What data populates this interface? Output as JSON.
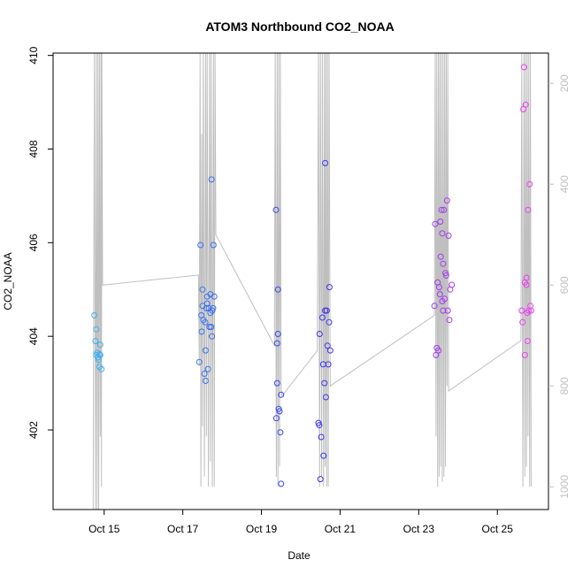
{
  "chart_data": {
    "type": "scatter",
    "title": "ATOM3 Northbound CO2_NOAA",
    "xlabel": "Date",
    "ylabel": "CO2_NOAA",
    "x_ticks": [
      "Oct 15",
      "Oct 17",
      "Oct 19",
      "Oct 21",
      "Oct 23",
      "Oct 25"
    ],
    "x_tick_values": [
      15,
      17,
      19,
      21,
      23,
      25
    ],
    "xlim": [
      13.7,
      26.3
    ],
    "ylim": [
      400.3,
      410.05
    ],
    "y_ticks": [
      402,
      404,
      406,
      408,
      410
    ],
    "right_axis": {
      "ticks": [
        200,
        400,
        600,
        800,
        1000
      ],
      "ylim": [
        1045,
        140
      ],
      "color": "#bfbfbf",
      "note": "secondary reversed axis for the gray trace"
    },
    "grid": false,
    "legend": "none",
    "point_color_start": "#3fb6ef",
    "point_color_end": "#f03ef0",
    "points": [
      [
        14.75,
        404.45
      ],
      [
        14.78,
        403.9
      ],
      [
        14.8,
        404.15
      ],
      [
        14.8,
        403.6
      ],
      [
        14.82,
        403.65
      ],
      [
        14.84,
        403.55
      ],
      [
        14.86,
        403.5
      ],
      [
        14.88,
        403.62
      ],
      [
        14.88,
        403.35
      ],
      [
        14.9,
        403.6
      ],
      [
        14.9,
        403.82
      ],
      [
        14.93,
        403.3
      ],
      [
        17.42,
        403.45
      ],
      [
        17.45,
        405.95
      ],
      [
        17.47,
        404.45
      ],
      [
        17.48,
        404.1
      ],
      [
        17.5,
        404.65
      ],
      [
        17.5,
        405.0
      ],
      [
        17.52,
        404.35
      ],
      [
        17.55,
        403.2
      ],
      [
        17.57,
        404.3
      ],
      [
        17.58,
        403.05
      ],
      [
        17.58,
        403.7
      ],
      [
        17.6,
        404.6
      ],
      [
        17.62,
        404.85
      ],
      [
        17.62,
        404.7
      ],
      [
        17.64,
        403.3
      ],
      [
        17.66,
        404.6
      ],
      [
        17.68,
        404.2
      ],
      [
        17.7,
        404.5
      ],
      [
        17.7,
        404.9
      ],
      [
        17.72,
        404.2
      ],
      [
        17.73,
        407.35
      ],
      [
        17.74,
        404.0
      ],
      [
        17.75,
        404.55
      ],
      [
        17.77,
        404.6
      ],
      [
        17.78,
        405.95
      ],
      [
        17.8,
        404.85
      ],
      [
        19.37,
        406.7
      ],
      [
        19.38,
        402.25
      ],
      [
        19.4,
        403.85
      ],
      [
        19.4,
        403.0
      ],
      [
        19.42,
        405.0
      ],
      [
        19.42,
        404.05
      ],
      [
        19.44,
        402.45
      ],
      [
        19.46,
        402.4
      ],
      [
        19.48,
        401.95
      ],
      [
        19.5,
        402.75
      ],
      [
        19.5,
        400.85
      ],
      [
        20.45,
        402.15
      ],
      [
        20.47,
        402.1
      ],
      [
        20.48,
        404.05
      ],
      [
        20.5,
        400.95
      ],
      [
        20.52,
        401.85
      ],
      [
        20.55,
        404.4
      ],
      [
        20.57,
        403.4
      ],
      [
        20.58,
        401.45
      ],
      [
        20.6,
        403.0
      ],
      [
        20.62,
        404.55
      ],
      [
        20.62,
        407.7
      ],
      [
        20.64,
        402.7
      ],
      [
        20.66,
        404.55
      ],
      [
        20.68,
        403.8
      ],
      [
        20.7,
        403.4
      ],
      [
        20.72,
        404.3
      ],
      [
        20.73,
        405.05
      ],
      [
        20.75,
        403.7
      ],
      [
        23.4,
        404.65
      ],
      [
        23.42,
        406.4
      ],
      [
        23.44,
        403.6
      ],
      [
        23.46,
        403.75
      ],
      [
        23.48,
        405.15
      ],
      [
        23.5,
        403.7
      ],
      [
        23.52,
        405.05
      ],
      [
        23.54,
        404.9
      ],
      [
        23.55,
        406.45
      ],
      [
        23.56,
        405.7
      ],
      [
        23.58,
        406.7
      ],
      [
        23.6,
        406.2
      ],
      [
        23.6,
        404.75
      ],
      [
        23.62,
        405.55
      ],
      [
        23.62,
        404.55
      ],
      [
        23.64,
        406.7
      ],
      [
        23.66,
        404.8
      ],
      [
        23.68,
        405.35
      ],
      [
        23.7,
        405.3
      ],
      [
        23.72,
        406.9
      ],
      [
        23.74,
        404.55
      ],
      [
        23.76,
        406.15
      ],
      [
        23.78,
        404.35
      ],
      [
        23.8,
        405.0
      ],
      [
        23.84,
        405.1
      ],
      [
        25.62,
        404.55
      ],
      [
        25.64,
        404.3
      ],
      [
        25.66,
        408.85
      ],
      [
        25.68,
        409.75
      ],
      [
        25.7,
        405.15
      ],
      [
        25.7,
        403.6
      ],
      [
        25.72,
        408.95
      ],
      [
        25.74,
        405.1
      ],
      [
        25.74,
        405.25
      ],
      [
        25.76,
        404.5
      ],
      [
        25.77,
        403.9
      ],
      [
        25.78,
        406.7
      ],
      [
        25.8,
        404.55
      ],
      [
        25.82,
        407.25
      ],
      [
        25.84,
        404.65
      ],
      [
        25.86,
        404.55
      ]
    ],
    "trace": [
      [
        14.72,
        1045
      ],
      [
        14.75,
        140
      ],
      [
        14.78,
        1045
      ],
      [
        14.8,
        140
      ],
      [
        14.82,
        1045
      ],
      [
        14.84,
        140
      ],
      [
        14.86,
        1045
      ],
      [
        14.88,
        140
      ],
      [
        14.9,
        900
      ],
      [
        14.92,
        140
      ],
      [
        14.93,
        1000
      ],
      [
        14.94,
        140
      ],
      [
        14.96,
        600
      ],
      [
        17.4,
        580
      ],
      [
        17.42,
        760
      ],
      [
        17.44,
        140
      ],
      [
        17.46,
        1000
      ],
      [
        17.48,
        300
      ],
      [
        17.5,
        880
      ],
      [
        17.52,
        140
      ],
      [
        17.55,
        980
      ],
      [
        17.58,
        140
      ],
      [
        17.6,
        900
      ],
      [
        17.62,
        140
      ],
      [
        17.65,
        1000
      ],
      [
        17.68,
        140
      ],
      [
        17.7,
        950
      ],
      [
        17.72,
        140
      ],
      [
        17.75,
        1000
      ],
      [
        17.78,
        140
      ],
      [
        17.8,
        1000
      ],
      [
        17.82,
        140
      ],
      [
        17.84,
        500
      ],
      [
        19.33,
        720
      ],
      [
        19.35,
        140
      ],
      [
        19.38,
        980
      ],
      [
        19.4,
        140
      ],
      [
        19.42,
        1000
      ],
      [
        19.44,
        140
      ],
      [
        19.46,
        960
      ],
      [
        19.48,
        140
      ],
      [
        19.5,
        800
      ],
      [
        19.52,
        820
      ],
      [
        20.42,
        730
      ],
      [
        20.45,
        140
      ],
      [
        20.48,
        1000
      ],
      [
        20.5,
        140
      ],
      [
        20.53,
        980
      ],
      [
        20.55,
        140
      ],
      [
        20.58,
        1000
      ],
      [
        20.6,
        140
      ],
      [
        20.62,
        960
      ],
      [
        20.64,
        140
      ],
      [
        20.66,
        1000
      ],
      [
        20.68,
        140
      ],
      [
        20.7,
        1000
      ],
      [
        20.72,
        140
      ],
      [
        20.75,
        800
      ],
      [
        23.4,
        660
      ],
      [
        23.42,
        140
      ],
      [
        23.44,
        900
      ],
      [
        23.46,
        140
      ],
      [
        23.48,
        1000
      ],
      [
        23.5,
        140
      ],
      [
        23.52,
        980
      ],
      [
        23.54,
        140
      ],
      [
        23.56,
        960
      ],
      [
        23.58,
        140
      ],
      [
        23.6,
        990
      ],
      [
        23.62,
        140
      ],
      [
        23.64,
        980
      ],
      [
        23.66,
        140
      ],
      [
        23.68,
        960
      ],
      [
        23.7,
        140
      ],
      [
        23.72,
        800
      ],
      [
        23.74,
        140
      ],
      [
        23.76,
        810
      ],
      [
        25.6,
        710
      ],
      [
        25.62,
        140
      ],
      [
        25.65,
        1000
      ],
      [
        25.68,
        140
      ],
      [
        25.7,
        980
      ],
      [
        25.72,
        140
      ],
      [
        25.74,
        960
      ],
      [
        25.76,
        140
      ],
      [
        25.78,
        900
      ],
      [
        25.8,
        140
      ],
      [
        25.82,
        1000
      ],
      [
        25.84,
        140
      ],
      [
        25.86,
        1000
      ]
    ]
  }
}
